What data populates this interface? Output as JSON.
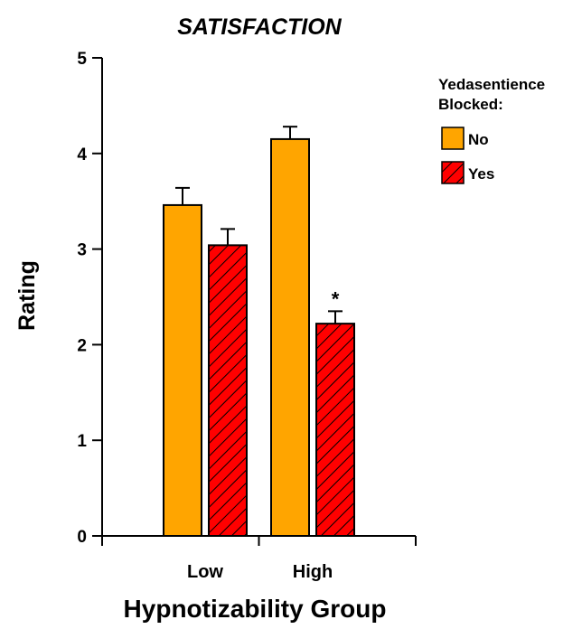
{
  "chart_data": {
    "type": "bar",
    "title": "SATISFACTION",
    "xlabel": "Hypnotizability Group",
    "ylabel": "Rating",
    "ylim": [
      0,
      5
    ],
    "yticks": [
      "0",
      "1",
      "2",
      "3",
      "4",
      "5"
    ],
    "categories": [
      "Low",
      "High"
    ],
    "legend_title": "Yedasentience Blocked:",
    "legend_title_lines": [
      "Yedasentience",
      "Blocked:"
    ],
    "legend_position": "top-right",
    "grid": false,
    "series": [
      {
        "name": "No",
        "values": [
          3.46,
          4.15
        ],
        "errors": [
          0.18,
          0.13
        ],
        "color": "#FFA500",
        "pattern": "solid"
      },
      {
        "name": "Yes",
        "values": [
          3.04,
          2.22
        ],
        "errors": [
          0.17,
          0.13
        ],
        "color": "#FF0000",
        "pattern": "hatched"
      }
    ],
    "annotations": [
      {
        "text": "*",
        "category": "High",
        "series": "Yes"
      }
    ]
  }
}
